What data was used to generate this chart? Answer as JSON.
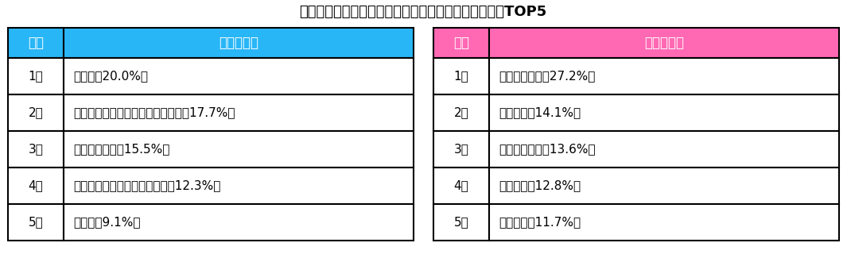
{
  "title": "職場の忘年会の幹事を一緒にしたい芸能人ランキングTOP5",
  "title_fontsize": 13,
  "male_header": [
    "順位",
    "男性芸能人"
  ],
  "female_header": [
    "順位",
    "女性芸能人"
  ],
  "male_header_color": "#29B6F6",
  "female_header_color": "#FF69B4",
  "header_text_color": "#FFFFFF",
  "male_rows": [
    [
      "1位",
      "桜井翔（20.0%）"
    ],
    [
      "2位",
      "山里亮太（南海キャンディーズ）（17.7%）"
    ],
    [
      "3位",
      "明石家さんま（15.5%）"
    ],
    [
      "4位",
      "吉村崇（平成ノブシコブシ）（12.3%）"
    ],
    [
      "5位",
      "田中圭（9.1%）"
    ]
  ],
  "female_rows": [
    [
      "1位",
      "イモトアヤコ（27.2%）"
    ],
    [
      "2位",
      "指原莉乃（14.1%）"
    ],
    [
      "3位",
      "ハリセンボン（13.6%）"
    ],
    [
      "4位",
      "渡辺直美（12.8%）"
    ],
    [
      "5位",
      "松岡茉優（11.7%）"
    ]
  ],
  "border_color": "#000000",
  "text_color": "#000000",
  "bg_color": "#FFFFFF",
  "font_size": 11,
  "header_font_size": 12
}
